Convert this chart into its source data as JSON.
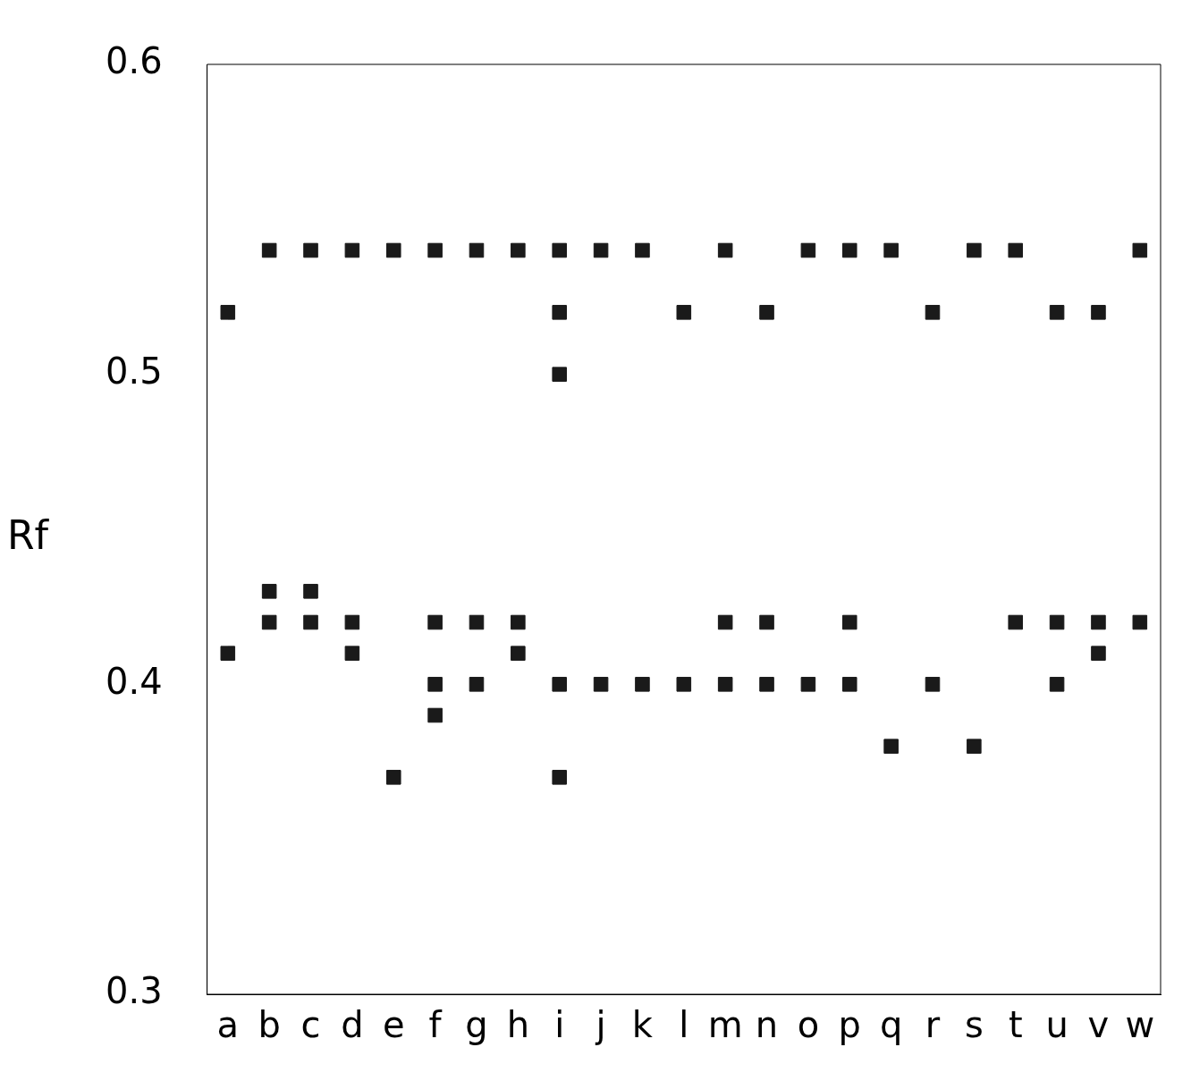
{
  "chart_data": {
    "type": "scatter",
    "ylabel": "Rf",
    "categories": [
      "a",
      "b",
      "c",
      "d",
      "e",
      "f",
      "g",
      "h",
      "i",
      "j",
      "k",
      "l",
      "m",
      "n",
      "o",
      "p",
      "q",
      "r",
      "s",
      "t",
      "u",
      "v",
      "w"
    ],
    "series": [
      {
        "type": "scatter",
        "color": "#1a1a1a",
        "x": [
          "a",
          "a",
          "b",
          "b",
          "b",
          "c",
          "c",
          "c",
          "d",
          "d",
          "d",
          "e",
          "e",
          "f",
          "f",
          "f",
          "f",
          "g",
          "g",
          "g",
          "h",
          "h",
          "h",
          "i",
          "i",
          "i",
          "i",
          "i",
          "j",
          "j",
          "k",
          "k",
          "l",
          "l",
          "m",
          "m",
          "m",
          "n",
          "n",
          "n",
          "o",
          "o",
          "p",
          "p",
          "p",
          "q",
          "q",
          "r",
          "r",
          "s",
          "s",
          "t",
          "t",
          "u",
          "u",
          "u",
          "v",
          "v",
          "v",
          "w",
          "w"
        ],
        "values": [
          0.52,
          0.41,
          0.54,
          0.43,
          0.42,
          0.54,
          0.43,
          0.42,
          0.54,
          0.42,
          0.41,
          0.54,
          0.37,
          0.54,
          0.42,
          0.4,
          0.39,
          0.54,
          0.42,
          0.4,
          0.54,
          0.42,
          0.41,
          0.54,
          0.52,
          0.5,
          0.4,
          0.37,
          0.54,
          0.4,
          0.54,
          0.4,
          0.52,
          0.4,
          0.54,
          0.42,
          0.4,
          0.52,
          0.42,
          0.4,
          0.54,
          0.4,
          0.54,
          0.42,
          0.4,
          0.54,
          0.38,
          0.52,
          0.4,
          0.54,
          0.38,
          0.54,
          0.42,
          0.52,
          0.42,
          0.4,
          0.52,
          0.42,
          0.41,
          0.54,
          0.42
        ]
      }
    ],
    "ylim": [
      0.3,
      0.6
    ],
    "yticks": [
      0.3,
      0.4,
      0.5,
      0.6
    ],
    "marker": "square",
    "grid": false,
    "legend": false
  }
}
